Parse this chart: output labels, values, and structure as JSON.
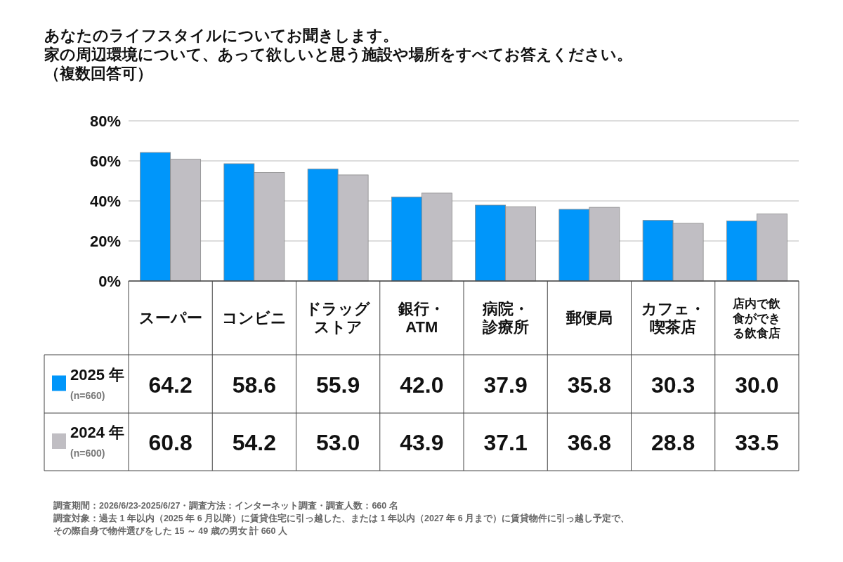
{
  "chart_data": {
    "type": "bar",
    "title": "あなたのライフスタイルについてお聞きします。家の周辺環境について、あって欲しいと思う施設や場所をすべてお答えください。",
    "subtitle": "（複数回答可）",
    "categories": [
      "スーパー",
      "コンビニ",
      "ドラッグストア",
      "銀行・ATM",
      "病院・診療所",
      "郵便局",
      "カフェ・喫茶店",
      "店内で飲食ができる飲食店"
    ],
    "series": [
      {
        "name": "2025 年 (n=660)",
        "color": "#0096fa",
        "values": [
          64.2,
          58.6,
          55.9,
          42.0,
          37.9,
          35.8,
          30.3,
          30.0
        ],
        "value_labels": [
          "64.2",
          "58.6",
          "55.9",
          "42.0",
          "37.9",
          "35.8",
          "30.3",
          "30.0"
        ]
      },
      {
        "name": "2024 年 (n=600)",
        "color": "#c0bec3",
        "values": [
          60.8,
          54.2,
          53.0,
          43.9,
          37.1,
          36.8,
          28.8,
          33.5
        ],
        "value_labels": [
          "60.8",
          "54.2",
          "53.0",
          "43.9",
          "37.1",
          "36.8",
          "28.8",
          "33.5"
        ]
      }
    ],
    "ylim": [
      0,
      80
    ],
    "yticks": [
      {
        "value": 0,
        "label": "0%"
      },
      {
        "value": 20,
        "label": "20%"
      },
      {
        "value": 40,
        "label": "40%"
      },
      {
        "value": 60,
        "label": "60%"
      },
      {
        "value": 80,
        "label": "80%"
      }
    ],
    "grid": "y",
    "legend": "bottom",
    "annotations": [
      "調査期間：2026/6/23-2025/6/27・調査方法：インターネット調査・調査人数：660 名",
      "調査対象：過去 1 年以内（2025 年 6 月以降）に賃貸住宅に引っ越した、または 1 年以内（2027 年 6 月まで）に賃貸物件に引っ越し予定で、",
      "その際自身で物件選びをした 15 ～ 49 歳の男女 計 660 人"
    ]
  }
}
